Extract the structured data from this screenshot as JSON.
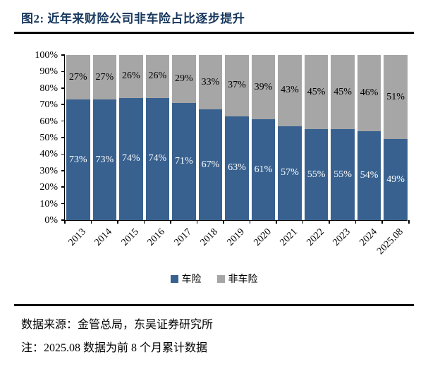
{
  "title": "图2:  近年来财险公司非车险占比逐步提升",
  "footer": {
    "source": "数据来源：金管总局，东吴证券研究所",
    "note": "注：2025.08 数据为前 8 个月累计数据"
  },
  "colors": {
    "title_navy": "#17375D",
    "auto_blue": "#38618F",
    "non_auto_gray": "#A6A6A6",
    "rule_black": "#000000"
  },
  "chart_data": {
    "type": "bar",
    "stacked": true,
    "title": "",
    "xlabel": "",
    "ylabel": "",
    "categories": [
      "2013",
      "2014",
      "2015",
      "2016",
      "2017",
      "2018",
      "2019",
      "2020",
      "2021",
      "2022",
      "2023",
      "2024",
      "2025.08"
    ],
    "series": [
      {
        "name": "车险",
        "color": "#38618F",
        "label_color": "#FFFFFF",
        "values": [
          73,
          73,
          74,
          74,
          71,
          67,
          63,
          61,
          57,
          55,
          55,
          54,
          49
        ]
      },
      {
        "name": "非车险",
        "color": "#A6A6A6",
        "label_color": "#000000",
        "values": [
          27,
          27,
          26,
          26,
          29,
          33,
          37,
          39,
          43,
          45,
          45,
          46,
          51
        ]
      }
    ],
    "value_label_format": "{v}%",
    "y_ticks": [
      "100%",
      "90%",
      "80%",
      "70%",
      "60%",
      "50%",
      "40%",
      "30%",
      "20%",
      "10%",
      "0%"
    ],
    "ylim": [
      0,
      100
    ],
    "grid": false,
    "legend_position": "bottom"
  }
}
